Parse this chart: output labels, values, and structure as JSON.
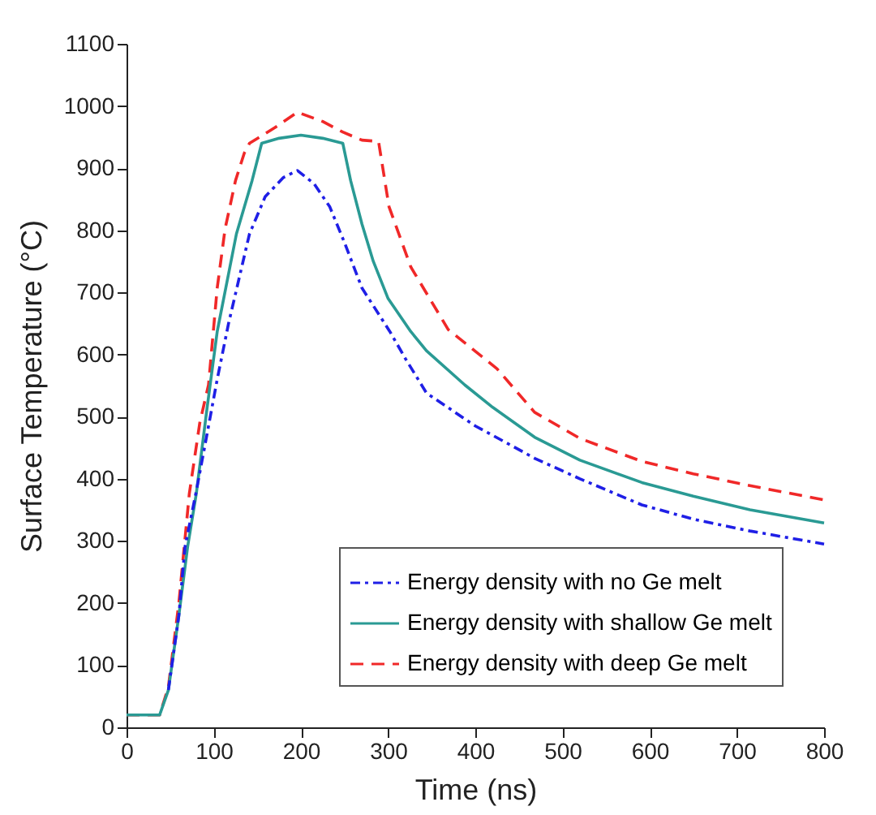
{
  "chart_data": {
    "type": "line",
    "xlabel": "Time (ns)",
    "ylabel": "Surface Temperature (°C)",
    "xlim": [
      0,
      800
    ],
    "xticks": [
      0,
      100,
      200,
      300,
      400,
      500,
      600,
      700,
      800
    ],
    "ylim": [
      0,
      1100
    ],
    "yticks": [
      0,
      100,
      200,
      300,
      400,
      500,
      600,
      700,
      800,
      900,
      1000,
      1100
    ],
    "grid": false,
    "legend": "bottom right",
    "series": [
      {
        "name": "Energy density with no Ge melt",
        "color": "#1f1fe6",
        "line_style": "dashdot",
        "x": [
          48,
          60,
          67,
          80,
          91,
          104,
          117,
          141,
          159,
          180,
          196,
          215,
          233,
          250,
          270,
          302,
          320,
          344,
          400,
          450,
          468,
          520,
          591,
          650,
          715,
          800
        ],
        "values": [
          60,
          180,
          290,
          380,
          462,
          560,
          650,
          794,
          854,
          885,
          896,
          875,
          838,
          780,
          707,
          637,
          593,
          538,
          485,
          447,
          433,
          400,
          358,
          335,
          316,
          295
        ]
      },
      {
        "name": "Energy density with shallow Ge melt",
        "color": "#2a9a94",
        "line_style": "solid",
        "x": [
          0,
          38,
          48,
          60,
          70,
          80,
          92,
          104,
          126,
          144,
          155,
          175,
          200,
          225,
          248,
          257,
          270,
          283,
          300,
          326,
          344,
          388,
          420,
          468,
          520,
          591,
          650,
          715,
          800
        ],
        "values": [
          20,
          20,
          60,
          180,
          290,
          376,
          510,
          637,
          794,
          880,
          940,
          948,
          953,
          948,
          940,
          880,
          810,
          750,
          690,
          637,
          606,
          551,
          515,
          467,
          430,
          394,
          372,
          350,
          329
        ]
      },
      {
        "name": "Energy density with deep Ge melt",
        "color": "#f02828",
        "line_style": "dashed",
        "x": [
          0,
          38,
          48,
          60,
          72,
          84,
          94,
          104,
          113,
          125,
          135,
          141,
          170,
          196,
          225,
          248,
          270,
          289,
          301,
          326,
          369,
          425,
          468,
          520,
          591,
          650,
          715,
          800
        ],
        "values": [
          20,
          20,
          65,
          200,
          376,
          490,
          551,
          707,
          802,
          880,
          924,
          940,
          965,
          990,
          975,
          958,
          945,
          943,
          838,
          741,
          640,
          577,
          507,
          465,
          428,
          408,
          389,
          366
        ]
      }
    ]
  }
}
